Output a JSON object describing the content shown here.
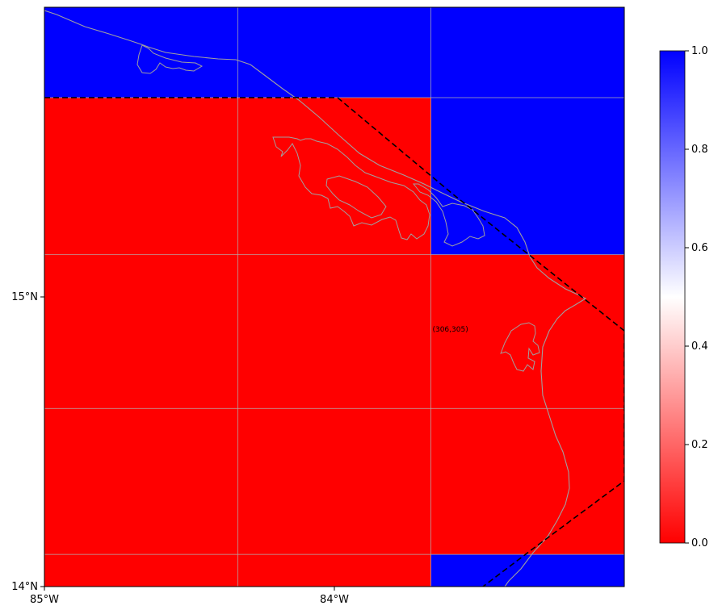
{
  "map": {
    "lon_min": -85.0,
    "lon_max": -83.0,
    "lat_min": 14.0,
    "lat_max": 16.0,
    "cell_values": [
      [
        1,
        1,
        1
      ],
      [
        0,
        0,
        1
      ],
      [
        0,
        0,
        0
      ],
      [
        0,
        0,
        0
      ],
      [
        0,
        0,
        1
      ]
    ],
    "grid_lons": [
      -84.333,
      -83.667
    ],
    "grid_lats": [
      15.688,
      15.146,
      14.615,
      14.111
    ],
    "colors": {
      "low": "#ff0000",
      "mid": "#ffffff",
      "high": "#0000ff",
      "coastline": "#a0a0a0",
      "gridline": "#b0b0b0",
      "boundary": "#000000"
    }
  },
  "axes": {
    "x_ticks": [
      {
        "value": -85,
        "label": "85°W"
      },
      {
        "value": -84,
        "label": "84°W"
      }
    ],
    "y_ticks": [
      {
        "value": 15,
        "label": "15°N"
      },
      {
        "value": 14,
        "label": "14°N"
      }
    ]
  },
  "annotation": {
    "text": "(306,305)",
    "lon": -83.6,
    "lat": 14.88
  },
  "colorbar": {
    "min": 0.0,
    "max": 1.0,
    "ticks": [
      {
        "value": 0.0,
        "label": "0.0"
      },
      {
        "value": 0.2,
        "label": "0.2"
      },
      {
        "value": 0.4,
        "label": "0.4"
      },
      {
        "value": 0.6,
        "label": "0.6"
      },
      {
        "value": 0.8,
        "label": "0.8"
      },
      {
        "value": 1.0,
        "label": "1.0"
      }
    ]
  }
}
